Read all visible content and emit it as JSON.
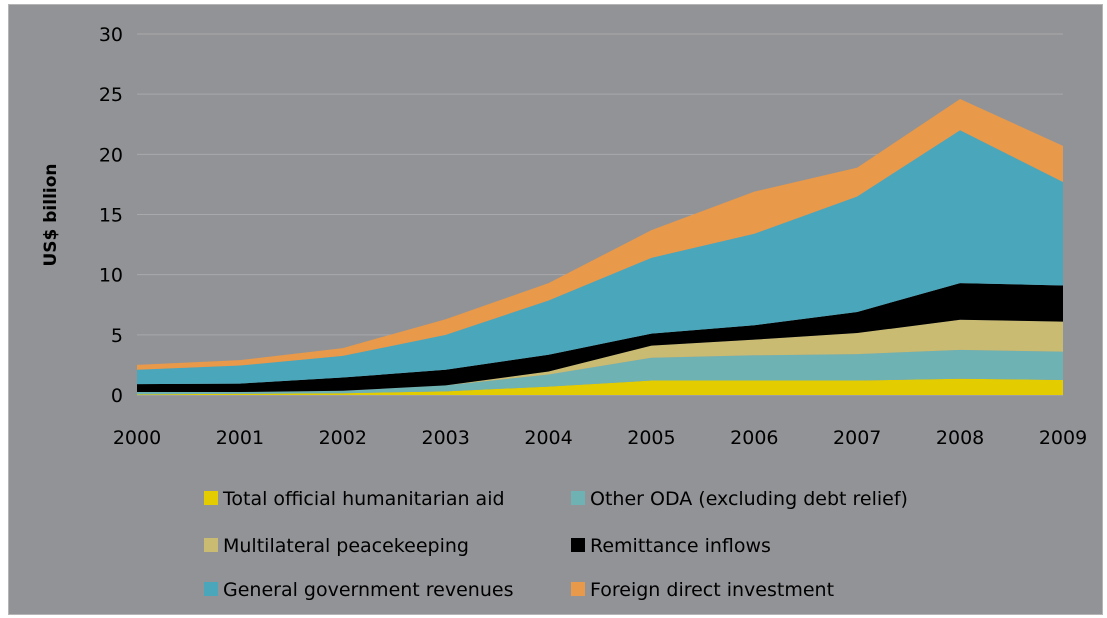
{
  "chart_data": {
    "type": "area",
    "stacked": true,
    "title": "",
    "xlabel": "",
    "ylabel": "US$ billion",
    "ylim": [
      0,
      30
    ],
    "yticks": [
      0,
      5,
      10,
      15,
      20,
      25,
      30
    ],
    "x": [
      "2000",
      "2001",
      "2002",
      "2003",
      "2004",
      "2005",
      "2006",
      "2007",
      "2008",
      "2009"
    ],
    "grid": true,
    "legend_position": "bottom",
    "series": [
      {
        "name": "Total official humanitarian aid",
        "color": "#e3cc00",
        "values": [
          0.05,
          0.1,
          0.15,
          0.3,
          0.7,
          1.2,
          1.2,
          1.2,
          1.35,
          1.25
        ]
      },
      {
        "name": "Other ODA (excluding debt relief)",
        "color": "#6fb2b4",
        "values": [
          0.2,
          0.15,
          0.2,
          0.5,
          1.0,
          1.9,
          2.1,
          2.2,
          2.4,
          2.35
        ]
      },
      {
        "name": "Multilateral peacekeeping",
        "color": "#c9bb72",
        "values": [
          0.0,
          0.0,
          0.0,
          0.0,
          0.25,
          1.0,
          1.3,
          1.75,
          2.5,
          2.5
        ]
      },
      {
        "name": "Remittance inflows",
        "color": "#000000",
        "values": [
          0.65,
          0.7,
          1.1,
          1.3,
          1.4,
          1.0,
          1.2,
          1.75,
          3.05,
          3.0
        ]
      },
      {
        "name": "General government revenues",
        "color": "#4aa6bb",
        "values": [
          1.2,
          1.5,
          1.8,
          2.9,
          4.5,
          6.3,
          7.6,
          9.6,
          12.7,
          8.6
        ]
      },
      {
        "name": "Foreign direct investment",
        "color": "#e8994a",
        "values": [
          0.4,
          0.45,
          0.65,
          1.3,
          1.45,
          2.3,
          3.5,
          2.4,
          2.6,
          3.0
        ]
      }
    ]
  }
}
